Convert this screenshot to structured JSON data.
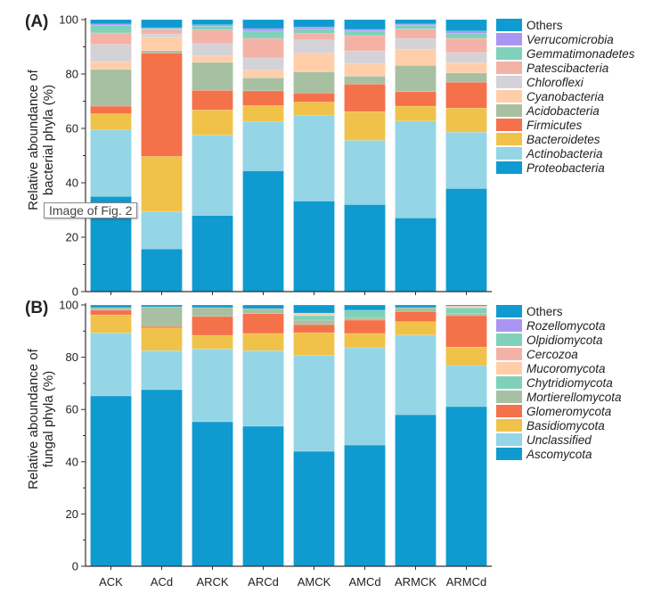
{
  "tooltip": "Image of Fig. 2",
  "chart_data": [
    {
      "type": "bar",
      "stacked": true,
      "panel_label": "(A)",
      "ylabel": [
        "Relative aboundance of",
        "bacterial phyla (%)"
      ],
      "ylim": [
        0,
        100
      ],
      "yticks": [
        0,
        20,
        40,
        60,
        80,
        100
      ],
      "grid": false,
      "legend_position": "right",
      "categories": [
        "ACK",
        "ACd",
        "ARCK",
        "ARCd",
        "AMCK",
        "AMCd",
        "ARMCK",
        "ARMCd"
      ],
      "series": [
        {
          "name": "Proteobacteria",
          "color": "#0f9bcf",
          "italic": true,
          "values": [
            35.0,
            15.7,
            28.0,
            44.4,
            33.3,
            32.0,
            27.1,
            37.9
          ]
        },
        {
          "name": "Actinobacteria",
          "color": "#94d5e6",
          "italic": true,
          "values": [
            24.5,
            13.7,
            29.5,
            18.2,
            31.6,
            23.6,
            35.6,
            20.7
          ]
        },
        {
          "name": "Bacteroidetes",
          "color": "#f0c24a",
          "italic": true,
          "values": [
            5.9,
            20.3,
            9.3,
            5.8,
            4.8,
            10.6,
            5.5,
            8.9
          ]
        },
        {
          "name": "Firmicutes",
          "color": "#f4714a",
          "italic": true,
          "values": [
            2.8,
            38.0,
            7.2,
            5.4,
            3.3,
            10.1,
            5.3,
            9.5
          ]
        },
        {
          "name": "Acidobacteria",
          "color": "#a8c0a2",
          "italic": true,
          "values": [
            13.5,
            0.9,
            10.3,
            4.8,
            7.8,
            2.9,
            9.7,
            3.4
          ]
        },
        {
          "name": "Cyanobacteria",
          "color": "#ffcea9",
          "italic": true,
          "values": [
            2.8,
            4.9,
            2.3,
            2.8,
            6.8,
            4.7,
            5.8,
            3.8
          ]
        },
        {
          "name": "Chloroflexi",
          "color": "#d4d2d7",
          "italic": true,
          "values": [
            6.4,
            1.2,
            4.6,
            4.5,
            4.9,
            4.6,
            4.1,
            3.7
          ]
        },
        {
          "name": "Patescibacteria",
          "color": "#f4b2a6",
          "italic": true,
          "values": [
            4.2,
            1.5,
            5.0,
            7.2,
            2.4,
            5.6,
            3.4,
            5.2
          ]
        },
        {
          "name": "Gemmatimonadetes",
          "color": "#80d1b9",
          "italic": true,
          "values": [
            2.8,
            0.5,
            1.4,
            2.7,
            1.6,
            1.7,
            1.5,
            1.8
          ]
        },
        {
          "name": "Verrucomicrobia",
          "color": "#a996f2",
          "italic": true,
          "values": [
            0.5,
            0.3,
            0.5,
            0.9,
            0.8,
            0.6,
            0.4,
            0.9
          ]
        },
        {
          "name": "Others",
          "color": "#0f9bcf",
          "italic": false,
          "values": [
            1.6,
            3.0,
            1.9,
            3.3,
            2.7,
            3.6,
            1.6,
            4.2
          ]
        }
      ]
    },
    {
      "type": "bar",
      "stacked": true,
      "panel_label": "(B)",
      "ylabel": [
        "Relative aboundance of",
        "fungal phyla (%)"
      ],
      "ylim": [
        0,
        100
      ],
      "yticks": [
        0,
        20,
        40,
        60,
        80,
        100
      ],
      "grid": false,
      "legend_position": "right",
      "categories": [
        "ACK",
        "ACd",
        "ARCK",
        "ARCd",
        "AMCK",
        "AMCd",
        "ARMCK",
        "ARMCd"
      ],
      "series": [
        {
          "name": "Ascomycota",
          "color": "#0f9bcf",
          "italic": true,
          "values": [
            65.2,
            67.6,
            55.3,
            53.6,
            44.0,
            46.4,
            58.0,
            61.1
          ]
        },
        {
          "name": "Unclassified",
          "color": "#94d5e6",
          "italic": true,
          "values": [
            24.1,
            14.9,
            27.9,
            28.9,
            36.6,
            37.2,
            30.5,
            15.7
          ]
        },
        {
          "name": "Basidiomycota",
          "color": "#f0c24a",
          "italic": true,
          "values": [
            6.9,
            8.7,
            5.2,
            6.6,
            8.8,
            5.5,
            5.1,
            7.1
          ]
        },
        {
          "name": "Glomeromycota",
          "color": "#f4714a",
          "italic": true,
          "values": [
            1.8,
            0.6,
            7.2,
            7.6,
            3.1,
            5.1,
            3.9,
            12.0
          ]
        },
        {
          "name": "Mortierellomycota",
          "color": "#a8c0a2",
          "italic": true,
          "values": [
            1.0,
            7.5,
            3.4,
            1.9,
            1.7,
            1.0,
            1.5,
            0.9
          ]
        },
        {
          "name": "Chytridiomycota",
          "color": "#80d1b9",
          "italic": true,
          "values": [
            0,
            0,
            0,
            0,
            1.7,
            2.8,
            0,
            2.1
          ]
        },
        {
          "name": "Mucoromycota",
          "color": "#ffcea9",
          "italic": true,
          "values": [
            0,
            0,
            0,
            0,
            1.0,
            0,
            0,
            0.7
          ]
        },
        {
          "name": "Cercozoa",
          "color": "#f4b2a6",
          "italic": true,
          "values": [
            0,
            0,
            0,
            0,
            0,
            0,
            0,
            0
          ]
        },
        {
          "name": "Olpidiomycota",
          "color": "#80d1b9",
          "italic": true,
          "values": [
            0,
            0,
            0,
            0,
            0,
            0,
            0,
            0
          ]
        },
        {
          "name": "Rozellomycota",
          "color": "#a996f2",
          "italic": true,
          "values": [
            0,
            0,
            0,
            0,
            0,
            0,
            0,
            0
          ]
        },
        {
          "name": "Others",
          "color": "#0f9bcf",
          "italic": false,
          "values": [
            1.0,
            0.7,
            1.0,
            1.4,
            3.1,
            2.0,
            1.0,
            0.4
          ]
        }
      ]
    }
  ]
}
